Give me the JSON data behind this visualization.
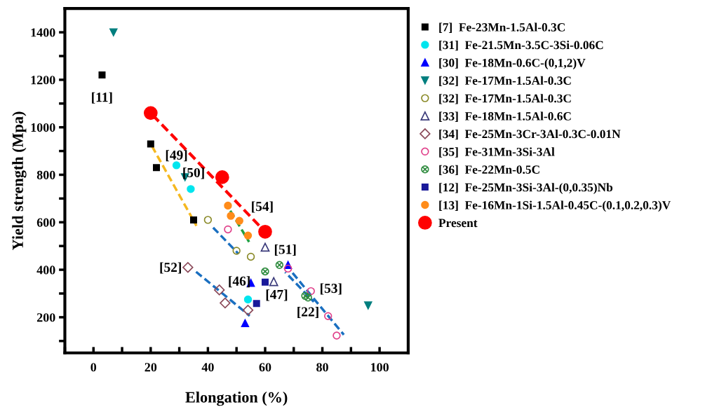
{
  "chart_data": {
    "type": "scatter",
    "xlabel": "Elongation (%)",
    "ylabel": "Yield strength (Mpa)",
    "xlim": [
      -10,
      110
    ],
    "ylim": [
      50,
      1500
    ],
    "xticks": [
      {
        "value": -10,
        "label": null
      },
      0,
      {
        "value": 10,
        "label": null
      },
      20,
      {
        "value": 30,
        "label": null
      },
      40,
      {
        "value": 50,
        "label": null
      },
      60,
      {
        "value": 70,
        "label": null
      },
      80,
      {
        "value": 90,
        "label": null
      },
      100
    ],
    "yticks": [
      {
        "value": 100,
        "label": null
      },
      200,
      {
        "value": 300,
        "label": null
      },
      400,
      {
        "value": 500,
        "label": null
      },
      600,
      {
        "value": 700,
        "label": null
      },
      800,
      {
        "value": 900,
        "label": null
      },
      1000,
      {
        "value": 1100,
        "label": null
      },
      1200,
      {
        "value": 1300,
        "label": null
      },
      1400
    ],
    "grid": false,
    "legend": "right",
    "series": [
      {
        "name": "[7]  Fe-23Mn-1.5Al-0.3C",
        "color": "#000000",
        "marker": "square",
        "x": [
          3,
          20,
          22,
          35
        ],
        "values": [
          1220,
          930,
          830,
          610
        ]
      },
      {
        "name": "[31]  Fe-21.5Mn-3.5C-3Si-0.06C",
        "color": "#00e5ee",
        "marker": "circle",
        "x": [
          29,
          34,
          54
        ],
        "values": [
          840,
          740,
          275
        ]
      },
      {
        "name": "[30]  Fe-18Mn-0.6C-(0,1,2)V",
        "color": "#0000ff",
        "marker": "triangle",
        "x": [
          55,
          53,
          68
        ],
        "values": [
          345,
          175,
          420
        ]
      },
      {
        "name": "[32]  Fe-17Mn-1.5Al-0.3C",
        "color": "#007f7f",
        "marker": "triangle-down",
        "x": [
          7,
          32,
          96
        ],
        "values": [
          1400,
          790,
          250
        ]
      },
      {
        "name": "[32]  Fe-17Mn-1.5Al-0.3C",
        "color": "#8b8b2a",
        "marker": "circle-open",
        "x": [
          40,
          50,
          55
        ],
        "values": [
          610,
          480,
          455
        ]
      },
      {
        "name": "[33]  Fe-18Mn-1.5Al-0.6C",
        "color": "#3a3a7a",
        "marker": "triangle-open",
        "x": [
          60,
          63
        ],
        "values": [
          495,
          350
        ]
      },
      {
        "name": "[34]  Fe-25Mn-3Cr-3Al-0.3C-0.01N",
        "color": "#8b4a5a",
        "marker": "diamond-open",
        "x": [
          33,
          44,
          46,
          54
        ],
        "values": [
          410,
          315,
          260,
          230
        ]
      },
      {
        "name": "[35]  Fe-31Mn-3Si-3Al",
        "color": "#e0408a",
        "marker": "circle-open",
        "x": [
          47,
          68,
          76,
          82,
          85
        ],
        "values": [
          570,
          405,
          310,
          205,
          123
        ]
      },
      {
        "name": "[36]  Fe-22Mn-0.5C",
        "color": "#2e8b3e",
        "marker": "cross",
        "x": [
          60,
          65,
          74,
          75
        ],
        "values": [
          393,
          420,
          290,
          283
        ]
      },
      {
        "name": "[12]  Fe-25Mn-3Si-3Al-(0,0.35)Nb",
        "color": "#1a1a9a",
        "marker": "square",
        "x": [
          60,
          57
        ],
        "values": [
          348,
          258
        ]
      },
      {
        "name": "[13]  Fe-16Mn-1Si-1.5Al-0.45C-(0.1,0.2,0.3)V",
        "color": "#ff8c1a",
        "marker": "circle",
        "x": [
          47,
          48,
          51,
          54
        ],
        "values": [
          670,
          627,
          606,
          544
        ]
      },
      {
        "name": "Present",
        "color": "#ff0000",
        "marker": "circle-big",
        "x": [
          20,
          45,
          60
        ],
        "values": [
          1060,
          790,
          560
        ]
      },
      {
        "type": "line",
        "color": "#ff0000",
        "line_style": "dashed",
        "x": [
          20,
          60
        ],
        "values": [
          1060,
          560
        ]
      },
      {
        "type": "line",
        "color": "#f5b820",
        "line_style": "dashed",
        "x": [
          20,
          36
        ],
        "values": [
          930,
          585
        ]
      },
      {
        "type": "line",
        "color": "#22a040",
        "line_style": "dashed",
        "x": [
          47.6,
          54.4
        ],
        "values": [
          653,
          517
        ]
      },
      {
        "type": "line",
        "color": "#1a6fc0",
        "line_style": "dashed",
        "x": [
          41.7,
          50.7
        ],
        "values": [
          579,
          467
        ]
      },
      {
        "type": "line",
        "color": "#1a6fc0",
        "line_style": "dashed",
        "x": [
          35.7,
          54.6
        ],
        "values": [
          393,
          206
        ]
      },
      {
        "type": "line",
        "color": "#1a6fc0",
        "line_style": "dashed",
        "x": [
          67,
          77
        ],
        "values": [
          390,
          265
        ]
      },
      {
        "type": "line",
        "color": "#1a6fc0",
        "line_style": "dashed",
        "x": [
          69,
          87.5
        ],
        "values": [
          395,
          126
        ]
      }
    ],
    "annotations": [
      "[11]",
      "[49]",
      "[50]",
      "[54]",
      "[52]",
      "[46]",
      "[47]",
      "[51]",
      "[53]",
      "[22]"
    ]
  }
}
